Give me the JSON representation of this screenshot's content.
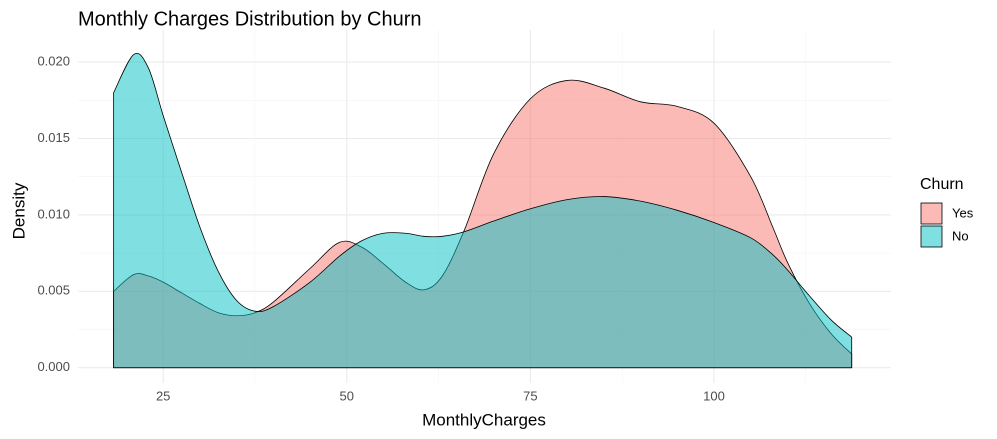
{
  "chart_data": {
    "type": "density",
    "title": "Monthly Charges Distribution by Churn",
    "x_label": "MonthlyCharges",
    "y_label": "Density",
    "legend_title": "Churn",
    "legend_position": "right",
    "x": [
      18.25,
      21,
      23,
      25,
      27.5,
      30,
      32.5,
      35,
      37.5,
      40,
      45,
      49,
      52,
      55,
      58,
      60.5,
      63,
      66,
      70,
      75,
      80,
      85,
      90,
      95,
      100,
      105,
      108,
      110,
      113,
      116,
      118.75
    ],
    "series": [
      {
        "name": "Yes",
        "color": "#F8766D",
        "values": [
          0.005,
          0.0061,
          0.006,
          0.0056,
          0.0049,
          0.0042,
          0.0036,
          0.0034,
          0.0036,
          0.0043,
          0.0065,
          0.0082,
          0.0079,
          0.0068,
          0.0056,
          0.0051,
          0.006,
          0.009,
          0.014,
          0.0176,
          0.0188,
          0.0183,
          0.0174,
          0.0171,
          0.016,
          0.0125,
          0.0092,
          0.0069,
          0.0042,
          0.0022,
          0.0009
        ]
      },
      {
        "name": "No",
        "color": "#00BFC4",
        "values": [
          0.018,
          0.0205,
          0.0196,
          0.0165,
          0.0128,
          0.0092,
          0.0063,
          0.0044,
          0.0037,
          0.004,
          0.0056,
          0.0073,
          0.0083,
          0.0088,
          0.0088,
          0.0086,
          0.0086,
          0.0089,
          0.0096,
          0.0104,
          0.011,
          0.0112,
          0.0109,
          0.0103,
          0.0095,
          0.0085,
          0.0074,
          0.0064,
          0.0047,
          0.0031,
          0.002
        ]
      }
    ],
    "fill_opacity": 0.5,
    "xlim": [
      13.4,
      124.1
    ],
    "ylim": [
      -0.001,
      0.0221
    ],
    "xticks": [
      25,
      50,
      75,
      100
    ],
    "x_minor_ticks": [
      37.5,
      62.5,
      87.5,
      112.5
    ],
    "yticks": [
      {
        "value": 0,
        "label": "0.000"
      },
      {
        "value": 0.005,
        "label": "0.005"
      },
      {
        "value": 0.01,
        "label": "0.010"
      },
      {
        "value": 0.015,
        "label": "0.015"
      },
      {
        "value": 0.02,
        "label": "0.020"
      }
    ],
    "y_minor_ticks": [
      0.0025,
      0.0075,
      0.0125,
      0.0175
    ],
    "grid": true
  }
}
